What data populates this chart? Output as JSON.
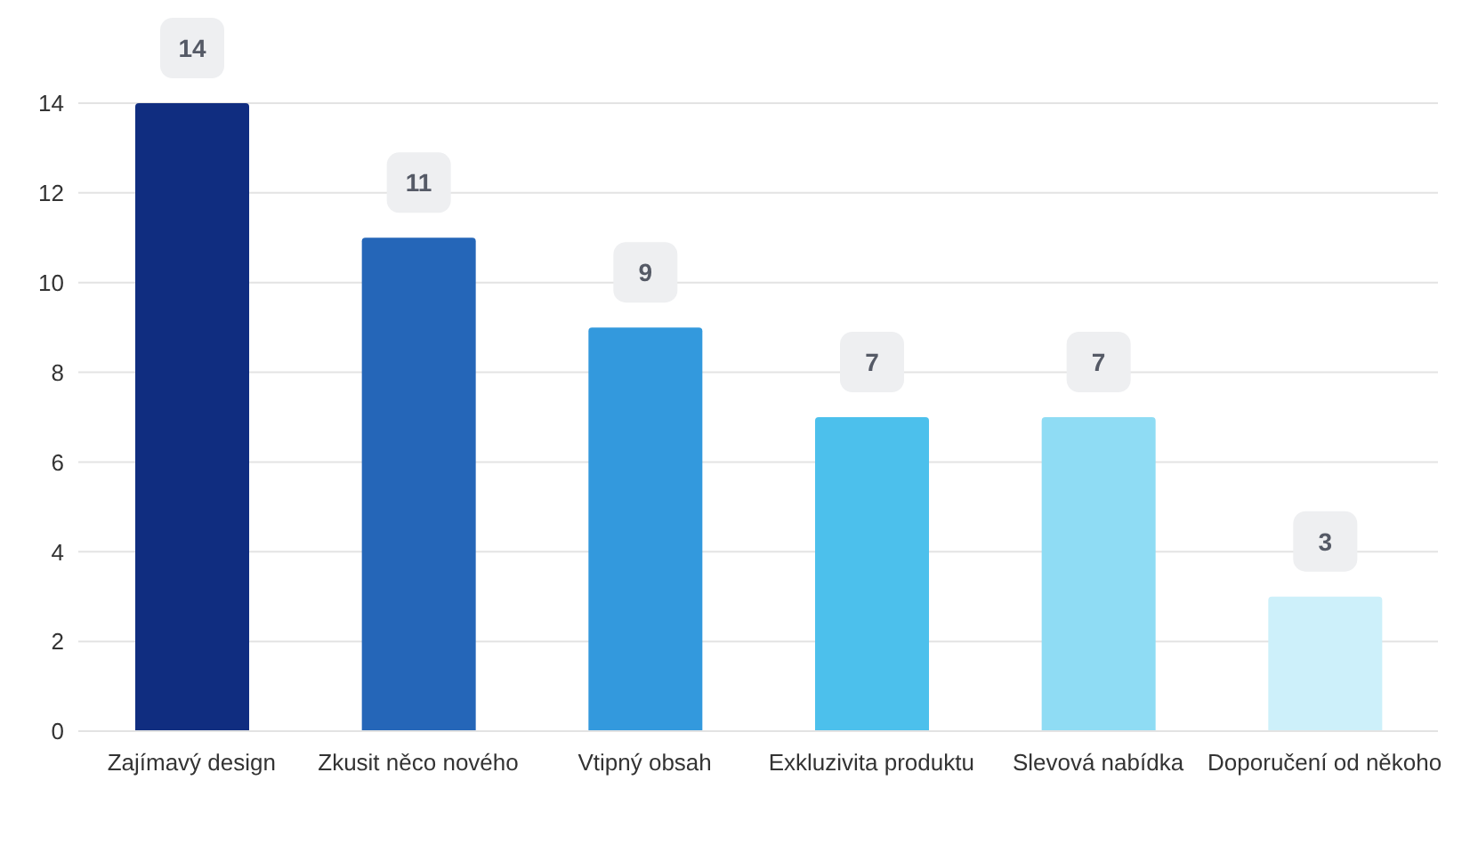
{
  "chart_data": {
    "type": "bar",
    "categories": [
      "Zajímavý design",
      "Zkusit něco nového",
      "Vtipný obsah",
      "Exkluzivita produktu",
      "Slevová nabídka",
      "Doporučení od někoho"
    ],
    "values": [
      14,
      11,
      9,
      7,
      7,
      3
    ],
    "colors": [
      "#102d80",
      "#2566b8",
      "#3399dd",
      "#4cc0ec",
      "#8fdcf4",
      "#cdf0fa"
    ],
    "ylim": [
      0,
      14
    ],
    "yticks": [
      0,
      2,
      4,
      6,
      8,
      10,
      12,
      14
    ],
    "grid": "y",
    "data_labels": true
  }
}
